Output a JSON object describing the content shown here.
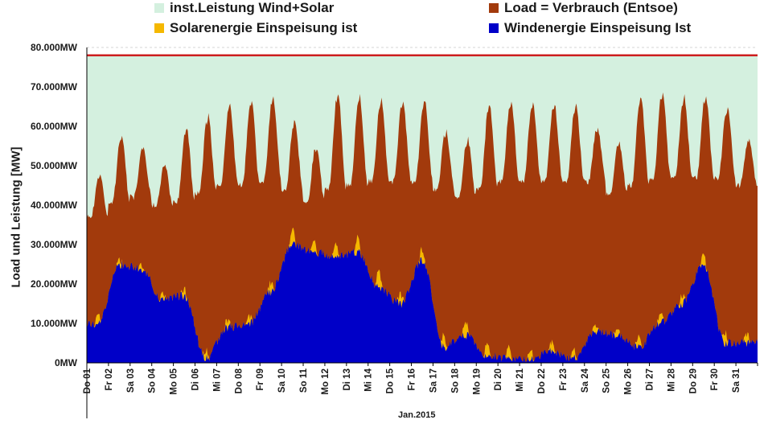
{
  "legend": {
    "installed": "inst.Leistung Wind+Solar",
    "load": "Load =  Verbrauch (Entsoe)",
    "solar": "Solarenergie Einspeisung ist",
    "wind": "Windenergie Einspeisung Ist"
  },
  "colors": {
    "installed": "#d4f0df",
    "installed_line": "#cc1f1f",
    "load": "#a23a0c",
    "solar": "#f5b800",
    "wind": "#0000c8",
    "grid": "#c7c7c7"
  },
  "chart_data": {
    "type": "area",
    "title": "",
    "xlabel": "Jan.2015",
    "ylabel": "Load und Leistung  [MW]",
    "ylim": [
      0,
      80000
    ],
    "yticks": [
      0,
      10000,
      20000,
      30000,
      40000,
      50000,
      60000,
      70000,
      80000
    ],
    "ytick_labels": [
      "0MW",
      "10.000MW",
      "20.000MW",
      "30.000MW",
      "40.000MW",
      "50.000MW",
      "60.000MW",
      "70.000MW",
      "80.000MW"
    ],
    "x_categories": [
      "Do 01",
      "Fr 02",
      "Sa 03",
      "So 04",
      "Mo 05",
      "Di 06",
      "Mi 07",
      "Do 08",
      "Fr 09",
      "Sa 10",
      "So 11",
      "Mo 12",
      "Di 13",
      "Mi 14",
      "Do 15",
      "Fr 16",
      "Sa 17",
      "So 18",
      "Mo 19",
      "Di 20",
      "Mi 21",
      "Do 22",
      "Fr 23",
      "Sa 24",
      "So 25",
      "Mo 26",
      "Di 27",
      "Mi 28",
      "Do 29",
      "Fr 30",
      "Sa 31"
    ],
    "installed_capacity_mw": 78000,
    "series": [
      {
        "name": "Load =  Verbrauch (Entsoe)",
        "unit": "MW",
        "day_max": [
          48000,
          58000,
          55000,
          50000,
          60000,
          63000,
          66000,
          67000,
          68000,
          62000,
          55000,
          69000,
          68000,
          67000,
          67000,
          67000,
          59000,
          57000,
          66000,
          67000,
          66000,
          66000,
          66000,
          60000,
          56000,
          68000,
          69000,
          68000,
          68000,
          65000,
          57000
        ],
        "day_min": [
          37000,
          41000,
          42000,
          40000,
          41000,
          43000,
          45000,
          45000,
          46000,
          44000,
          41000,
          44000,
          45000,
          46000,
          46000,
          46000,
          44000,
          42000,
          44000,
          46000,
          46000,
          46000,
          46000,
          46000,
          43000,
          45000,
          47000,
          47000,
          47000,
          47000,
          45000
        ]
      },
      {
        "name": "Windenergie Einspeisung Ist",
        "unit": "MW",
        "day_values": [
          10000,
          25000,
          24000,
          16000,
          17000,
          1000,
          9000,
          10000,
          18000,
          30000,
          28000,
          27000,
          28000,
          19000,
          15000,
          26000,
          4000,
          7000,
          2000,
          1000,
          1000,
          3000,
          1000,
          8000,
          7000,
          4000,
          10000,
          15000,
          25000,
          5000,
          5000
        ]
      },
      {
        "name": "Solarenergie Einspeisung ist",
        "unit": "MW",
        "day_peak": [
          2500,
          1500,
          1500,
          1500,
          2000,
          2000,
          2000,
          2000,
          2500,
          4000,
          3000,
          3500,
          4000,
          4500,
          2500,
          3000,
          3000,
          4000,
          3500,
          3000,
          2500,
          2500,
          2000,
          2000,
          2000,
          2500,
          2500,
          2500,
          3000,
          3000,
          2500
        ]
      }
    ]
  }
}
